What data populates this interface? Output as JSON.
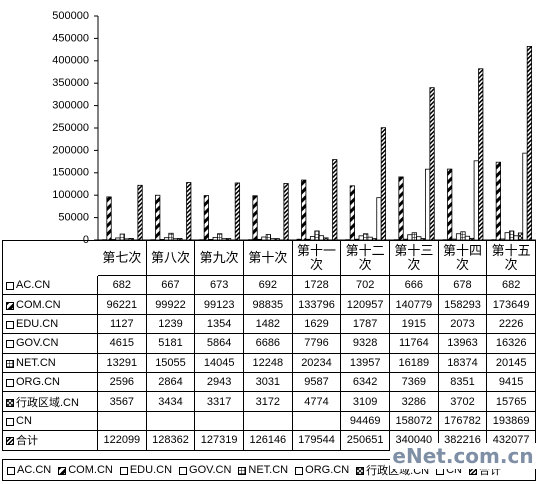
{
  "chart_data": {
    "type": "bar",
    "categories": [
      "第七次",
      "第八次",
      "第九次",
      "第十次",
      "第十一次",
      "第十二次",
      "第十三次",
      "第十四次",
      "第十五次"
    ],
    "series": [
      {
        "name": "AC.CN",
        "color": "#ffffff",
        "pattern": "none",
        "values": [
          682,
          667,
          673,
          692,
          1728,
          702,
          666,
          678,
          682
        ]
      },
      {
        "name": "COM.CN",
        "color": "#ffffff",
        "pattern": "diagonal",
        "values": [
          96221,
          99922,
          99123,
          98835,
          133796,
          120957,
          140779,
          158293,
          173649
        ]
      },
      {
        "name": "EDU.CN",
        "color": "#ffffff",
        "pattern": "none",
        "values": [
          1127,
          1239,
          1354,
          1482,
          1629,
          1787,
          1915,
          2073,
          2226
        ]
      },
      {
        "name": "GOV.CN",
        "color": "#ffffff",
        "pattern": "none",
        "values": [
          4615,
          5181,
          5864,
          6686,
          7796,
          9328,
          11764,
          13963,
          16326
        ]
      },
      {
        "name": "NET.CN",
        "color": "#ffffff",
        "pattern": "grid",
        "values": [
          13291,
          15055,
          14045,
          12248,
          20234,
          13957,
          16189,
          18374,
          20145
        ]
      },
      {
        "name": "ORG.CN",
        "color": "#ffffff",
        "pattern": "none",
        "values": [
          2596,
          2864,
          2943,
          3031,
          9587,
          6342,
          7369,
          8351,
          9415
        ]
      },
      {
        "name": "行政区域.CN",
        "color": "#ffffff",
        "pattern": "crosshatch",
        "values": [
          3567,
          3434,
          3317,
          3172,
          4774,
          3109,
          3286,
          3702,
          15765
        ]
      },
      {
        "name": "CN",
        "color": "#ffffff",
        "pattern": "none",
        "values": [
          null,
          null,
          null,
          null,
          null,
          94469,
          158072,
          176782,
          193869
        ]
      },
      {
        "name": "合计",
        "color": "#ffffff",
        "pattern": "dense",
        "values": [
          122099,
          128362,
          127319,
          126146,
          179544,
          250651,
          340040,
          382216,
          432077
        ]
      }
    ],
    "ylim": [
      0,
      500000
    ],
    "yticks": [
      0,
      50000,
      100000,
      150000,
      200000,
      250000,
      300000,
      350000,
      400000,
      450000,
      500000
    ],
    "legend": "bottom",
    "data_table": true
  },
  "watermark": "eNet.com.cn"
}
